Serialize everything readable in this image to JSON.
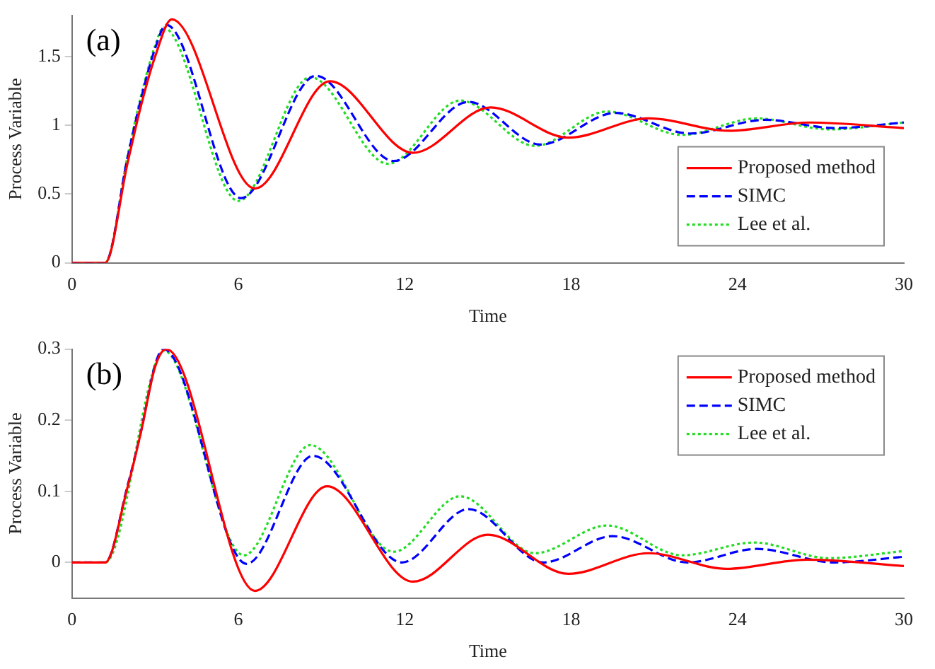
{
  "chart_data": [
    {
      "type": "line",
      "annotations": [
        "(a)"
      ],
      "xlabel": "Time",
      "ylabel": "Process Variable",
      "xlim": [
        0,
        30
      ],
      "xticks": [
        0,
        6,
        12,
        18,
        24,
        30
      ],
      "ylim": [
        0,
        1.8
      ],
      "yticks": [
        0,
        0.5,
        1,
        1.5
      ],
      "grid": false,
      "legend": "bottom right",
      "series": [
        {
          "name": "Proposed method",
          "color": "#ff0000",
          "line_style": "solid",
          "x": [
            0,
            1.2,
            2,
            2.5,
            3,
            3.6,
            6.6,
            9.3,
            12.3,
            15.1,
            17.9,
            20.8,
            23.7,
            26.6,
            30
          ],
          "values": [
            0,
            0,
            0.72,
            1.15,
            1.5,
            1.77,
            0.54,
            1.32,
            0.8,
            1.13,
            0.91,
            1.05,
            0.96,
            1.02,
            0.98
          ]
        },
        {
          "name": "SIMC",
          "color": "#0000ff",
          "line_style": "dashed",
          "x": [
            0,
            1.2,
            2,
            2.5,
            3,
            3.4,
            6.1,
            8.8,
            11.6,
            14.3,
            16.9,
            19.6,
            22.3,
            25,
            27.5,
            30
          ],
          "values": [
            0,
            0,
            0.76,
            1.2,
            1.56,
            1.73,
            0.47,
            1.36,
            0.74,
            1.17,
            0.86,
            1.09,
            0.94,
            1.04,
            0.98,
            1.02
          ]
        },
        {
          "name": "Lee et al.",
          "color": "#22dd22",
          "line_style": "dotted",
          "x": [
            0,
            1.2,
            2,
            2.5,
            3,
            3.3,
            6,
            8.6,
            11.4,
            14,
            16.7,
            19.3,
            22,
            24.7,
            27.3,
            30
          ],
          "values": [
            0,
            0,
            0.77,
            1.22,
            1.58,
            1.71,
            0.45,
            1.35,
            0.72,
            1.18,
            0.85,
            1.1,
            0.93,
            1.05,
            0.97,
            1.02
          ]
        }
      ]
    },
    {
      "type": "line",
      "annotations": [
        "(b)"
      ],
      "xlabel": "Time",
      "ylabel": "Process Variable",
      "xlim": [
        0,
        30
      ],
      "xticks": [
        0,
        6,
        12,
        18,
        24,
        30
      ],
      "ylim": [
        -0.05,
        0.3
      ],
      "yticks": [
        0,
        0.1,
        0.2,
        0.3
      ],
      "grid": false,
      "legend": "top right",
      "series": [
        {
          "name": "Proposed method",
          "color": "#ff0000",
          "line_style": "solid",
          "x": [
            0,
            1.2,
            2,
            2.5,
            3,
            3.4,
            6.6,
            9.2,
            12.3,
            15,
            17.9,
            20.8,
            23.6,
            26.5,
            30
          ],
          "values": [
            0,
            0,
            0.105,
            0.185,
            0.275,
            0.3,
            -0.04,
            0.107,
            -0.027,
            0.039,
            -0.016,
            0.013,
            -0.009,
            0.004,
            -0.005
          ]
        },
        {
          "name": "SIMC",
          "color": "#0000ff",
          "line_style": "dashed",
          "x": [
            0,
            1.2,
            2,
            2.5,
            3,
            3.3,
            6.3,
            8.7,
            11.9,
            14.3,
            17,
            19.5,
            22.2,
            24.7,
            27.5,
            30
          ],
          "values": [
            0,
            0,
            0.107,
            0.186,
            0.278,
            0.3,
            -0.002,
            0.15,
            0,
            0.075,
            0,
            0.037,
            0,
            0.019,
            0,
            0.008
          ]
        },
        {
          "name": "Lee et al.",
          "color": "#22dd22",
          "line_style": "dotted",
          "x": [
            0,
            1.2,
            3,
            3.3,
            6.2,
            8.6,
            11.6,
            14,
            16.7,
            19.3,
            22,
            24.6,
            27.3,
            30
          ],
          "values": [
            0,
            0,
            0.278,
            0.298,
            0.01,
            0.165,
            0.015,
            0.093,
            0.013,
            0.052,
            0.01,
            0.028,
            0.006,
            0.016
          ]
        }
      ]
    }
  ]
}
